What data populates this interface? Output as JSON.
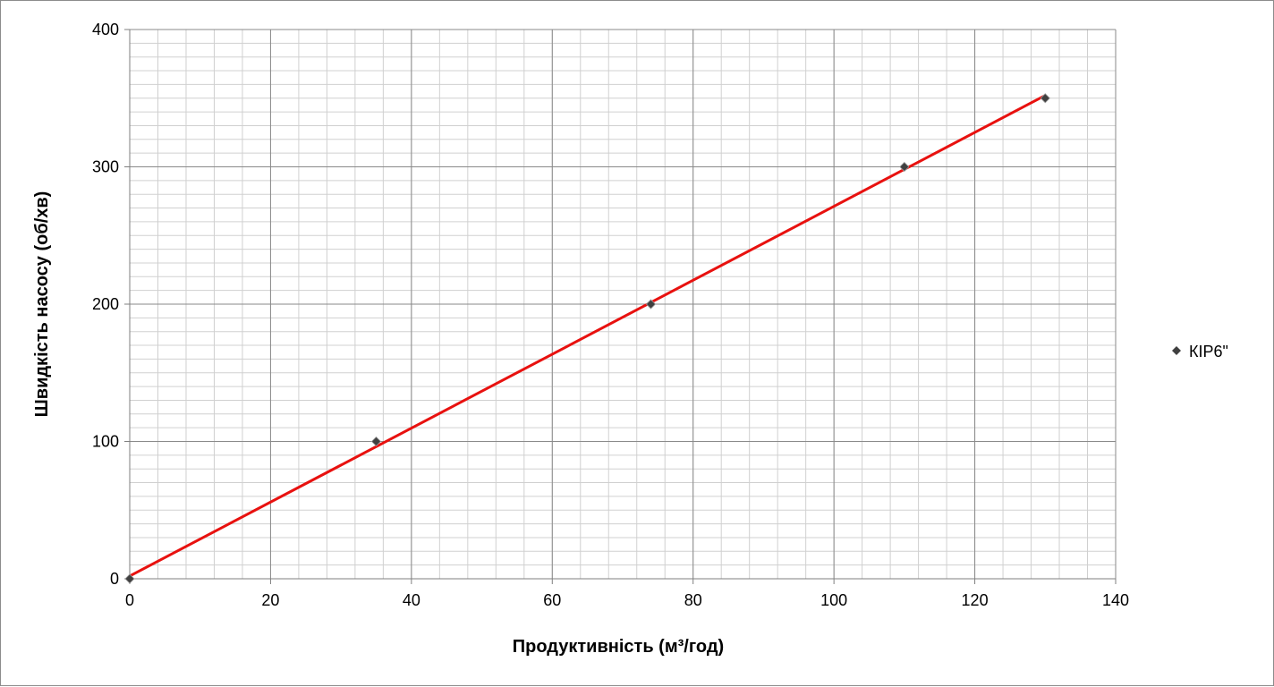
{
  "chart_data": {
    "type": "scatter",
    "title": "",
    "xlabel": "Продуктивність (м³/год)",
    "ylabel": "Швидкість насосу (об/хв)",
    "xlim": [
      0,
      140
    ],
    "ylim": [
      0,
      400
    ],
    "x_ticks": [
      0,
      20,
      40,
      60,
      80,
      100,
      120,
      140
    ],
    "y_ticks": [
      0,
      100,
      200,
      300,
      400
    ],
    "x_tick_labels": [
      "0",
      "20",
      "40",
      "60",
      "80",
      "100",
      "120",
      "140"
    ],
    "y_tick_labels": [
      "0",
      "100",
      "200",
      "300",
      "400"
    ],
    "grid": true,
    "legend_position": "right",
    "series": [
      {
        "name": "КІР6\"",
        "marker": "diamond",
        "color": "#404040",
        "x": [
          0,
          35,
          74,
          110,
          130
        ],
        "y": [
          0,
          100,
          200,
          300,
          350
        ]
      }
    ],
    "trendline": {
      "type": "linear",
      "color": "#e8110f",
      "x": [
        0,
        130
      ],
      "y": [
        2,
        352
      ]
    }
  }
}
